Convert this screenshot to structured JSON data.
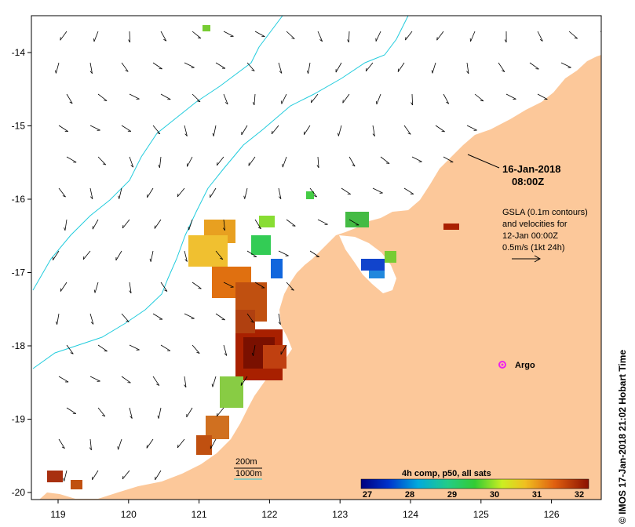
{
  "map": {
    "x_ticks": [
      "119",
      "120",
      "121",
      "122",
      "123",
      "124",
      "125",
      "126"
    ],
    "y_ticks": [
      "-14",
      "-15",
      "-16",
      "-17",
      "-18",
      "-19",
      "-20"
    ],
    "date_line1": "16-Jan-2018",
    "date_line2": "08:00Z",
    "gsla_lines": [
      "GSLA (0.1m contours)",
      "and velocities for",
      "12-Jan 00:00Z",
      "0.5m/s (1kt 24h)"
    ],
    "argo_label": "Argo",
    "depth_200": "200m",
    "depth_1000": "1000m",
    "colorbar": {
      "title": "4h comp, p50, all sats",
      "ticks": [
        "27",
        "28",
        "29",
        "30",
        "31",
        "32"
      ]
    },
    "credit": "© IMOS 17-Jan-2018 21:02 Hobart Time",
    "colors": {
      "land": "#fcc89a",
      "contour": "#22ccdd",
      "argo": "#ee22ee"
    }
  }
}
